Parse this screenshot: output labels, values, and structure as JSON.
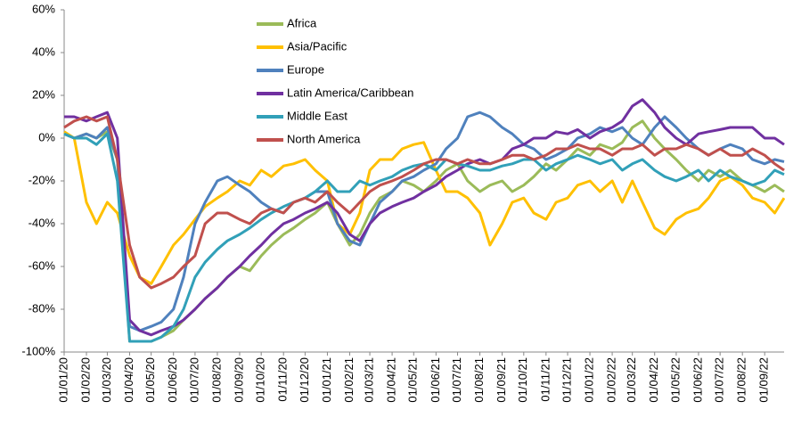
{
  "chart_data": {
    "type": "line",
    "x": [
      "2020-01-01",
      "2020-01-15",
      "2020-02-01",
      "2020-02-15",
      "2020-03-01",
      "2020-03-15",
      "2020-04-01",
      "2020-04-15",
      "2020-05-01",
      "2020-05-15",
      "2020-06-01",
      "2020-06-15",
      "2020-07-01",
      "2020-07-15",
      "2020-08-01",
      "2020-08-15",
      "2020-09-01",
      "2020-09-15",
      "2020-10-01",
      "2020-10-15",
      "2020-11-01",
      "2020-11-15",
      "2020-12-01",
      "2020-12-15",
      "2021-01-01",
      "2021-01-15",
      "2021-02-01",
      "2021-02-15",
      "2021-03-01",
      "2021-03-15",
      "2021-04-01",
      "2021-04-15",
      "2021-05-01",
      "2021-05-15",
      "2021-06-01",
      "2021-06-15",
      "2021-07-01",
      "2021-07-15",
      "2021-08-01",
      "2021-08-15",
      "2021-09-01",
      "2021-09-15",
      "2021-10-01",
      "2021-10-15",
      "2021-11-01",
      "2021-11-15",
      "2021-12-01",
      "2021-12-15",
      "2022-01-01",
      "2022-01-15",
      "2022-02-01",
      "2022-02-15",
      "2022-03-01",
      "2022-03-15",
      "2022-04-01",
      "2022-04-15",
      "2022-05-01",
      "2022-05-15",
      "2022-06-01",
      "2022-06-15",
      "2022-07-01",
      "2022-07-15",
      "2022-08-01",
      "2022-08-15",
      "2022-09-01",
      "2022-09-15",
      "2022-09-28"
    ],
    "series": [
      {
        "name": "Africa",
        "color": "#9bbb59",
        "values": [
          2,
          0,
          2,
          0,
          3,
          -10,
          -95,
          -95,
          -95,
          -93,
          -90,
          -85,
          -80,
          -75,
          -70,
          -65,
          -60,
          -62,
          -55,
          -50,
          -45,
          -42,
          -38,
          -35,
          -30,
          -40,
          -50,
          -45,
          -35,
          -28,
          -25,
          -20,
          -22,
          -25,
          -20,
          -15,
          -12,
          -20,
          -25,
          -22,
          -20,
          -25,
          -22,
          -18,
          -12,
          -15,
          -10,
          -5,
          -8,
          -3,
          -5,
          -2,
          5,
          8,
          0,
          -5,
          -10,
          -15,
          -20,
          -15,
          -18,
          -15,
          -20,
          -22,
          -25,
          -22,
          -25
        ]
      },
      {
        "name": "Asia/Pacific",
        "color": "#ffc000",
        "values": [
          3,
          0,
          -30,
          -40,
          -30,
          -35,
          -55,
          -65,
          -68,
          -60,
          -50,
          -45,
          -38,
          -32,
          -28,
          -25,
          -20,
          -22,
          -15,
          -18,
          -13,
          -12,
          -10,
          -15,
          -20,
          -40,
          -45,
          -35,
          -15,
          -10,
          -10,
          -5,
          -3,
          -2,
          -15,
          -25,
          -25,
          -28,
          -35,
          -50,
          -40,
          -30,
          -28,
          -35,
          -38,
          -30,
          -28,
          -22,
          -20,
          -25,
          -20,
          -30,
          -20,
          -30,
          -42,
          -45,
          -38,
          -35,
          -33,
          -28,
          -20,
          -18,
          -22,
          -28,
          -30,
          -35,
          -28
        ]
      },
      {
        "name": "Europe",
        "color": "#4f81bd",
        "values": [
          2,
          0,
          2,
          0,
          5,
          -10,
          -88,
          -90,
          -88,
          -86,
          -80,
          -65,
          -40,
          -30,
          -20,
          -18,
          -22,
          -25,
          -30,
          -33,
          -35,
          -30,
          -28,
          -25,
          -25,
          -40,
          -48,
          -50,
          -40,
          -30,
          -25,
          -20,
          -18,
          -15,
          -12,
          -5,
          0,
          10,
          12,
          10,
          5,
          2,
          -3,
          -5,
          -10,
          -8,
          -5,
          0,
          2,
          5,
          3,
          5,
          0,
          -3,
          5,
          10,
          5,
          0,
          -5,
          -8,
          -5,
          -3,
          -5,
          -10,
          -12,
          -10,
          -11
        ]
      },
      {
        "name": "Latin America/Caribbean",
        "color": "#7030a0",
        "values": [
          10,
          10,
          8,
          10,
          12,
          0,
          -85,
          -90,
          -92,
          -90,
          -88,
          -85,
          -80,
          -75,
          -70,
          -65,
          -60,
          -55,
          -50,
          -45,
          -40,
          -38,
          -35,
          -33,
          -30,
          -35,
          -45,
          -48,
          -40,
          -35,
          -32,
          -30,
          -28,
          -25,
          -22,
          -18,
          -15,
          -12,
          -10,
          -12,
          -10,
          -5,
          -3,
          0,
          0,
          3,
          2,
          4,
          0,
          3,
          5,
          8,
          15,
          18,
          12,
          5,
          0,
          -3,
          2,
          3,
          4,
          5,
          5,
          5,
          0,
          0,
          -3
        ]
      },
      {
        "name": "Middle East",
        "color": "#31a0b8",
        "values": [
          2,
          0,
          0,
          -3,
          2,
          -20,
          -95,
          -95,
          -95,
          -93,
          -88,
          -80,
          -65,
          -58,
          -52,
          -48,
          -45,
          -42,
          -38,
          -35,
          -32,
          -30,
          -28,
          -25,
          -20,
          -25,
          -25,
          -20,
          -22,
          -20,
          -18,
          -15,
          -13,
          -12,
          -15,
          -10,
          -12,
          -13,
          -15,
          -15,
          -13,
          -12,
          -10,
          -10,
          -15,
          -12,
          -10,
          -8,
          -10,
          -12,
          -10,
          -15,
          -12,
          -10,
          -15,
          -18,
          -20,
          -18,
          -15,
          -20,
          -15,
          -18,
          -20,
          -22,
          -20,
          -15,
          -17
        ]
      },
      {
        "name": "North America",
        "color": "#c0504d",
        "values": [
          5,
          8,
          10,
          8,
          10,
          -10,
          -50,
          -65,
          -70,
          -68,
          -65,
          -60,
          -55,
          -40,
          -35,
          -35,
          -38,
          -40,
          -35,
          -33,
          -35,
          -30,
          -28,
          -30,
          -25,
          -30,
          -35,
          -30,
          -25,
          -22,
          -20,
          -18,
          -15,
          -12,
          -10,
          -10,
          -12,
          -10,
          -12,
          -12,
          -10,
          -8,
          -8,
          -10,
          -8,
          -5,
          -5,
          -3,
          -5,
          -5,
          -8,
          -5,
          -5,
          -3,
          -8,
          -5,
          -5,
          -3,
          -5,
          -8,
          -5,
          -8,
          -8,
          -5,
          -8,
          -12,
          -15
        ]
      }
    ],
    "xlim": [
      "2020-01-01",
      "2022-09-28"
    ],
    "xticks": [
      {
        "value": "2020-01-01",
        "label": "01/01/20"
      },
      {
        "value": "2020-02-01",
        "label": "01/02/20"
      },
      {
        "value": "2020-03-01",
        "label": "01/03/20"
      },
      {
        "value": "2020-04-01",
        "label": "01/04/20"
      },
      {
        "value": "2020-05-01",
        "label": "01/05/20"
      },
      {
        "value": "2020-06-01",
        "label": "01/06/20"
      },
      {
        "value": "2020-07-01",
        "label": "01/07/20"
      },
      {
        "value": "2020-08-01",
        "label": "01/08/20"
      },
      {
        "value": "2020-09-01",
        "label": "01/09/20"
      },
      {
        "value": "2020-10-01",
        "label": "01/10/20"
      },
      {
        "value": "2020-11-01",
        "label": "01/11/20"
      },
      {
        "value": "2020-12-01",
        "label": "01/12/20"
      },
      {
        "value": "2021-01-01",
        "label": "01/01/21"
      },
      {
        "value": "2021-02-01",
        "label": "01/02/21"
      },
      {
        "value": "2021-03-01",
        "label": "01/03/21"
      },
      {
        "value": "2021-04-01",
        "label": "01/04/21"
      },
      {
        "value": "2021-05-01",
        "label": "01/05/21"
      },
      {
        "value": "2021-06-01",
        "label": "01/06/21"
      },
      {
        "value": "2021-07-01",
        "label": "01/07/21"
      },
      {
        "value": "2021-08-01",
        "label": "01/08/21"
      },
      {
        "value": "2021-09-01",
        "label": "01/09/21"
      },
      {
        "value": "2021-10-01",
        "label": "01/10/21"
      },
      {
        "value": "2021-11-01",
        "label": "01/11/21"
      },
      {
        "value": "2021-12-01",
        "label": "01/12/21"
      },
      {
        "value": "2022-01-01",
        "label": "01/01/22"
      },
      {
        "value": "2022-02-01",
        "label": "01/02/22"
      },
      {
        "value": "2022-03-01",
        "label": "01/03/22"
      },
      {
        "value": "2022-04-01",
        "label": "01/04/22"
      },
      {
        "value": "2022-05-01",
        "label": "01/05/22"
      },
      {
        "value": "2022-06-01",
        "label": "01/06/22"
      },
      {
        "value": "2022-07-01",
        "label": "01/07/22"
      },
      {
        "value": "2022-08-01",
        "label": "01/08/22"
      },
      {
        "value": "2022-09-01",
        "label": "01/09/22"
      }
    ],
    "ylim": [
      -100,
      60
    ],
    "yticks": [
      {
        "value": -100,
        "label": "-100%"
      },
      {
        "value": -80,
        "label": "-80%"
      },
      {
        "value": -60,
        "label": "-60%"
      },
      {
        "value": -40,
        "label": "-40%"
      },
      {
        "value": -20,
        "label": "-20%"
      },
      {
        "value": 0,
        "label": "0%"
      },
      {
        "value": 20,
        "label": "20%"
      },
      {
        "value": 40,
        "label": "40%"
      },
      {
        "value": 60,
        "label": "60%"
      }
    ],
    "grid": false,
    "legend": "top"
  }
}
